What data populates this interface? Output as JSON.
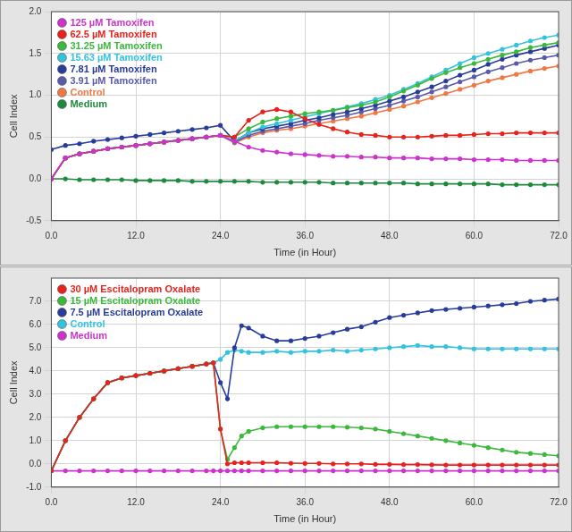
{
  "chart_data": [
    {
      "type": "line",
      "x_label": "Time (in Hour)",
      "y_label": "Cell Index",
      "grid": true,
      "legend": "upper left",
      "marker": "circle",
      "xlim": [
        0,
        72
      ],
      "xticks": [
        {
          "value": 0,
          "label": "0.0"
        },
        {
          "value": 12,
          "label": "12.0"
        },
        {
          "value": 24,
          "label": "24.0"
        },
        {
          "value": 36,
          "label": "36.0"
        },
        {
          "value": 48,
          "label": "48.0"
        },
        {
          "value": 60,
          "label": "60.0"
        },
        {
          "value": 72,
          "label": "72.0"
        }
      ],
      "ylim": [
        -0.5,
        2.0
      ],
      "yticks": [
        {
          "value": -0.5,
          "label": "-0.5"
        },
        {
          "value": 0,
          "label": "0.0"
        },
        {
          "value": 0.5,
          "label": "0.5"
        },
        {
          "value": 1,
          "label": "1.0"
        },
        {
          "value": 1.5,
          "label": "1.5"
        },
        {
          "value": 2,
          "label": "2.0"
        }
      ],
      "x": [
        0,
        2,
        4,
        6,
        8,
        10,
        12,
        14,
        16,
        18,
        20,
        22,
        24,
        26,
        28,
        30,
        32,
        34,
        36,
        38,
        40,
        42,
        44,
        46,
        48,
        50,
        52,
        54,
        56,
        58,
        60,
        62,
        64,
        66,
        68,
        70,
        72
      ],
      "series": [
        {
          "name": "125 µM Tamoxifen",
          "color": "#cc33cc",
          "values": [
            0.0,
            0.25,
            0.3,
            0.33,
            0.36,
            0.38,
            0.4,
            0.42,
            0.44,
            0.46,
            0.48,
            0.5,
            0.52,
            0.45,
            0.38,
            0.34,
            0.32,
            0.3,
            0.29,
            0.28,
            0.27,
            0.27,
            0.26,
            0.26,
            0.25,
            0.25,
            0.25,
            0.24,
            0.24,
            0.24,
            0.23,
            0.23,
            0.23,
            0.22,
            0.22,
            0.22,
            0.22
          ]
        },
        {
          "name": "62.5 µM Tamoxifen",
          "color": "#e8221c",
          "values": [
            0.0,
            0.25,
            0.3,
            0.33,
            0.36,
            0.38,
            0.4,
            0.42,
            0.44,
            0.46,
            0.48,
            0.5,
            0.52,
            0.5,
            0.7,
            0.8,
            0.83,
            0.8,
            0.72,
            0.65,
            0.6,
            0.56,
            0.53,
            0.52,
            0.5,
            0.5,
            0.5,
            0.51,
            0.52,
            0.52,
            0.53,
            0.54,
            0.54,
            0.55,
            0.55,
            0.55,
            0.55
          ]
        },
        {
          "name": "31.25 µM Tamoxifen",
          "color": "#3cb83c",
          "values": [
            0.0,
            0.25,
            0.3,
            0.33,
            0.36,
            0.38,
            0.4,
            0.42,
            0.44,
            0.46,
            0.48,
            0.5,
            0.52,
            0.5,
            0.6,
            0.68,
            0.72,
            0.75,
            0.78,
            0.8,
            0.82,
            0.85,
            0.88,
            0.92,
            0.98,
            1.05,
            1.12,
            1.2,
            1.27,
            1.33,
            1.38,
            1.43,
            1.48,
            1.52,
            1.57,
            1.6,
            1.63
          ]
        },
        {
          "name": "15.63 µM Tamoxifen",
          "color": "#33c3dc",
          "values": [
            0.0,
            0.25,
            0.3,
            0.33,
            0.36,
            0.38,
            0.4,
            0.42,
            0.44,
            0.46,
            0.48,
            0.5,
            0.52,
            0.45,
            0.55,
            0.62,
            0.66,
            0.7,
            0.74,
            0.78,
            0.82,
            0.86,
            0.9,
            0.95,
            1.0,
            1.07,
            1.14,
            1.22,
            1.3,
            1.38,
            1.45,
            1.5,
            1.55,
            1.6,
            1.65,
            1.69,
            1.72
          ]
        },
        {
          "name": "7.81 µM Tamoxifen",
          "color": "#283c9c",
          "values": [
            0.35,
            0.4,
            0.42,
            0.45,
            0.47,
            0.49,
            0.51,
            0.53,
            0.55,
            0.57,
            0.59,
            0.61,
            0.64,
            0.45,
            0.55,
            0.6,
            0.63,
            0.66,
            0.7,
            0.73,
            0.77,
            0.8,
            0.84,
            0.88,
            0.93,
            0.98,
            1.04,
            1.1,
            1.17,
            1.24,
            1.3,
            1.37,
            1.43,
            1.48,
            1.52,
            1.56,
            1.6
          ]
        },
        {
          "name": "3.91 µM Tamoxifen",
          "color": "#5a5aa8",
          "values": [
            0.0,
            0.25,
            0.3,
            0.33,
            0.36,
            0.38,
            0.4,
            0.42,
            0.44,
            0.46,
            0.48,
            0.5,
            0.52,
            0.44,
            0.52,
            0.57,
            0.6,
            0.63,
            0.66,
            0.7,
            0.73,
            0.76,
            0.8,
            0.84,
            0.88,
            0.93,
            0.98,
            1.04,
            1.1,
            1.16,
            1.22,
            1.28,
            1.33,
            1.38,
            1.42,
            1.45,
            1.48
          ]
        },
        {
          "name": "Control",
          "color": "#f07844",
          "values": [
            0.0,
            0.25,
            0.3,
            0.33,
            0.36,
            0.38,
            0.4,
            0.42,
            0.44,
            0.46,
            0.48,
            0.5,
            0.52,
            0.43,
            0.5,
            0.55,
            0.58,
            0.6,
            0.63,
            0.66,
            0.69,
            0.72,
            0.75,
            0.79,
            0.83,
            0.87,
            0.92,
            0.97,
            1.02,
            1.07,
            1.12,
            1.17,
            1.21,
            1.25,
            1.29,
            1.32,
            1.35
          ]
        },
        {
          "name": "Medium",
          "color": "#1e8a3c",
          "values": [
            0.0,
            0.0,
            -0.01,
            -0.01,
            -0.01,
            -0.01,
            -0.02,
            -0.02,
            -0.02,
            -0.02,
            -0.03,
            -0.03,
            -0.03,
            -0.03,
            -0.03,
            -0.04,
            -0.04,
            -0.04,
            -0.04,
            -0.04,
            -0.05,
            -0.05,
            -0.05,
            -0.05,
            -0.05,
            -0.05,
            -0.06,
            -0.06,
            -0.06,
            -0.06,
            -0.06,
            -0.06,
            -0.07,
            -0.07,
            -0.07,
            -0.07,
            -0.07
          ]
        }
      ]
    },
    {
      "type": "line",
      "x_label": "Time (in Hour)",
      "y_label": "Cell Index",
      "grid": true,
      "legend": "upper left",
      "marker": "circle",
      "xlim": [
        0,
        72
      ],
      "xticks": [
        {
          "value": 0,
          "label": "0.0"
        },
        {
          "value": 12,
          "label": "12.0"
        },
        {
          "value": 24,
          "label": "24.0"
        },
        {
          "value": 36,
          "label": "36.0"
        },
        {
          "value": 48,
          "label": "48.0"
        },
        {
          "value": 60,
          "label": "60.0"
        },
        {
          "value": 72,
          "label": "72.0"
        }
      ],
      "ylim": [
        -1,
        8
      ],
      "yticks": [
        {
          "value": -1,
          "label": "-1.0"
        },
        {
          "value": 0,
          "label": "0.0"
        },
        {
          "value": 1,
          "label": "1.0"
        },
        {
          "value": 2,
          "label": "2.0"
        },
        {
          "value": 3,
          "label": "3.0"
        },
        {
          "value": 4,
          "label": "4.0"
        },
        {
          "value": 5,
          "label": "5.0"
        },
        {
          "value": 6,
          "label": "6.0"
        },
        {
          "value": 7,
          "label": "7.0"
        }
      ],
      "x": [
        0,
        2,
        4,
        6,
        8,
        10,
        12,
        14,
        16,
        18,
        20,
        22,
        23,
        24,
        25,
        26,
        27,
        28,
        30,
        32,
        34,
        36,
        38,
        40,
        42,
        44,
        46,
        48,
        50,
        52,
        54,
        56,
        58,
        60,
        62,
        64,
        66,
        68,
        70,
        72
      ],
      "series": [
        {
          "name": "30 µM Escitalopram Oxalate",
          "color": "#e8221c",
          "values": [
            -0.3,
            1.0,
            2.0,
            2.8,
            3.5,
            3.7,
            3.8,
            3.9,
            4.0,
            4.1,
            4.2,
            4.3,
            4.35,
            1.5,
            0.0,
            0.05,
            0.05,
            0.05,
            0.05,
            0.05,
            0.03,
            0.02,
            0.02,
            0.0,
            0.0,
            0.0,
            -0.02,
            -0.02,
            -0.03,
            -0.03,
            -0.04,
            -0.05,
            -0.05,
            -0.05,
            -0.05,
            -0.05,
            -0.05,
            -0.05,
            -0.05,
            -0.05
          ]
        },
        {
          "name": "15 µM Escitalopram Oxalate",
          "color": "#3cb83c",
          "values": [
            -0.3,
            1.0,
            2.0,
            2.8,
            3.5,
            3.7,
            3.8,
            3.9,
            4.0,
            4.1,
            4.2,
            4.3,
            4.35,
            1.5,
            0.2,
            0.7,
            1.2,
            1.4,
            1.55,
            1.6,
            1.6,
            1.6,
            1.6,
            1.6,
            1.58,
            1.55,
            1.5,
            1.4,
            1.3,
            1.2,
            1.1,
            1.0,
            0.9,
            0.8,
            0.7,
            0.6,
            0.5,
            0.45,
            0.4,
            0.35
          ]
        },
        {
          "name": "7.5 µM Escitalopram Oxalate",
          "color": "#283c9c",
          "values": [
            -0.3,
            1.0,
            2.0,
            2.8,
            3.5,
            3.7,
            3.8,
            3.9,
            4.0,
            4.1,
            4.2,
            4.3,
            4.35,
            3.5,
            2.8,
            5.0,
            5.95,
            5.85,
            5.5,
            5.3,
            5.3,
            5.4,
            5.5,
            5.65,
            5.8,
            5.9,
            6.1,
            6.3,
            6.4,
            6.5,
            6.6,
            6.65,
            6.7,
            6.75,
            6.8,
            6.85,
            6.9,
            7.0,
            7.05,
            7.1
          ]
        },
        {
          "name": "Control",
          "color": "#33c3dc",
          "values": [
            -0.3,
            1.0,
            2.0,
            2.8,
            3.5,
            3.7,
            3.8,
            3.9,
            4.0,
            4.1,
            4.2,
            4.3,
            4.35,
            4.5,
            4.8,
            4.9,
            4.85,
            4.8,
            4.8,
            4.85,
            4.8,
            4.85,
            4.85,
            4.9,
            4.85,
            4.9,
            4.95,
            5.0,
            5.05,
            5.1,
            5.05,
            5.05,
            5.0,
            4.95,
            4.95,
            4.95,
            4.95,
            4.95,
            4.95,
            4.95
          ]
        },
        {
          "name": "Medium",
          "color": "#cc33cc",
          "values": [
            -0.3,
            -0.3,
            -0.3,
            -0.3,
            -0.3,
            -0.3,
            -0.3,
            -0.3,
            -0.3,
            -0.3,
            -0.3,
            -0.3,
            -0.3,
            -0.3,
            -0.3,
            -0.3,
            -0.3,
            -0.3,
            -0.3,
            -0.3,
            -0.3,
            -0.3,
            -0.3,
            -0.3,
            -0.3,
            -0.3,
            -0.3,
            -0.3,
            -0.3,
            -0.3,
            -0.3,
            -0.3,
            -0.3,
            -0.3,
            -0.3,
            -0.3,
            -0.3,
            -0.3,
            -0.3,
            -0.3
          ]
        }
      ]
    }
  ]
}
